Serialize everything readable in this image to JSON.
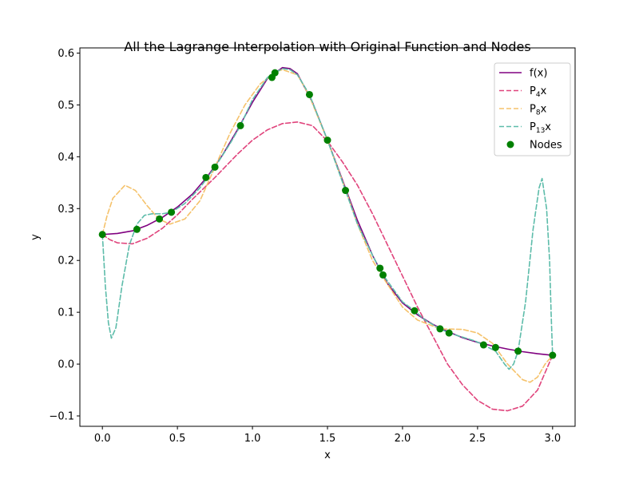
{
  "chart_data": {
    "type": "line",
    "title": "All the Lagrange Interpolation with Original Function and Nodes",
    "xlabel": "x",
    "ylabel": "y",
    "xlim": [
      -0.15,
      3.15
    ],
    "ylim": [
      -0.12,
      0.61
    ],
    "x_ticks": [
      0.0,
      0.5,
      1.0,
      1.5,
      2.0,
      2.5,
      3.0
    ],
    "x_tick_labels": [
      "0.0",
      "0.5",
      "1.0",
      "1.5",
      "2.0",
      "2.5",
      "3.0"
    ],
    "y_ticks": [
      -0.1,
      0.0,
      0.1,
      0.2,
      0.3,
      0.4,
      0.5,
      0.6
    ],
    "y_tick_labels": [
      "−0.1",
      "0.0",
      "0.1",
      "0.2",
      "0.3",
      "0.4",
      "0.5",
      "0.6"
    ],
    "grid": false,
    "legend_position": "top-right",
    "series": [
      {
        "name": "f(x)",
        "label_base": "f(x)",
        "label_sub": "",
        "label_tail": "",
        "color": "#800080",
        "style": "solid",
        "points": [
          [
            0.0,
            0.25
          ],
          [
            0.1,
            0.252
          ],
          [
            0.2,
            0.257
          ],
          [
            0.3,
            0.268
          ],
          [
            0.4,
            0.283
          ],
          [
            0.5,
            0.303
          ],
          [
            0.6,
            0.328
          ],
          [
            0.7,
            0.362
          ],
          [
            0.8,
            0.403
          ],
          [
            0.9,
            0.452
          ],
          [
            1.0,
            0.505
          ],
          [
            1.1,
            0.551
          ],
          [
            1.2,
            0.572
          ],
          [
            1.25,
            0.57
          ],
          [
            1.3,
            0.56
          ],
          [
            1.4,
            0.505
          ],
          [
            1.5,
            0.432
          ],
          [
            1.6,
            0.355
          ],
          [
            1.7,
            0.277
          ],
          [
            1.8,
            0.21
          ],
          [
            1.9,
            0.155
          ],
          [
            2.0,
            0.118
          ],
          [
            2.1,
            0.095
          ],
          [
            2.2,
            0.077
          ],
          [
            2.3,
            0.063
          ],
          [
            2.4,
            0.051
          ],
          [
            2.5,
            0.042
          ],
          [
            2.6,
            0.035
          ],
          [
            2.7,
            0.029
          ],
          [
            2.8,
            0.024
          ],
          [
            2.9,
            0.02
          ],
          [
            3.0,
            0.017
          ]
        ]
      },
      {
        "name": "P4x",
        "label_base": "P",
        "label_sub": "4",
        "label_tail": "x",
        "color": "#e0447c",
        "style": "dashed",
        "points": [
          [
            0.0,
            0.25
          ],
          [
            0.05,
            0.24
          ],
          [
            0.1,
            0.234
          ],
          [
            0.2,
            0.232
          ],
          [
            0.3,
            0.243
          ],
          [
            0.4,
            0.262
          ],
          [
            0.5,
            0.288
          ],
          [
            0.6,
            0.318
          ],
          [
            0.75,
            0.36
          ],
          [
            0.9,
            0.405
          ],
          [
            1.0,
            0.432
          ],
          [
            1.1,
            0.452
          ],
          [
            1.2,
            0.464
          ],
          [
            1.3,
            0.467
          ],
          [
            1.4,
            0.46
          ],
          [
            1.5,
            0.43
          ],
          [
            1.6,
            0.39
          ],
          [
            1.7,
            0.345
          ],
          [
            1.8,
            0.29
          ],
          [
            1.9,
            0.23
          ],
          [
            2.0,
            0.17
          ],
          [
            2.1,
            0.11
          ],
          [
            2.2,
            0.055
          ],
          [
            2.3,
            0.0
          ],
          [
            2.4,
            -0.04
          ],
          [
            2.5,
            -0.07
          ],
          [
            2.6,
            -0.087
          ],
          [
            2.7,
            -0.09
          ],
          [
            2.8,
            -0.081
          ],
          [
            2.9,
            -0.05
          ],
          [
            3.0,
            0.017
          ]
        ]
      },
      {
        "name": "P8x",
        "label_base": "P",
        "label_sub": "8",
        "label_tail": "x",
        "color": "#f5c26b",
        "style": "dashed",
        "points": [
          [
            0.0,
            0.25
          ],
          [
            0.03,
            0.285
          ],
          [
            0.07,
            0.32
          ],
          [
            0.15,
            0.345
          ],
          [
            0.22,
            0.335
          ],
          [
            0.3,
            0.305
          ],
          [
            0.375,
            0.28
          ],
          [
            0.45,
            0.27
          ],
          [
            0.55,
            0.28
          ],
          [
            0.65,
            0.315
          ],
          [
            0.75,
            0.38
          ],
          [
            0.85,
            0.445
          ],
          [
            0.95,
            0.5
          ],
          [
            1.05,
            0.54
          ],
          [
            1.15,
            0.563
          ],
          [
            1.2,
            0.568
          ],
          [
            1.3,
            0.558
          ],
          [
            1.375,
            0.52
          ],
          [
            1.5,
            0.432
          ],
          [
            1.625,
            0.333
          ],
          [
            1.7,
            0.27
          ],
          [
            1.8,
            0.2
          ],
          [
            1.875,
            0.165
          ],
          [
            2.0,
            0.11
          ],
          [
            2.1,
            0.085
          ],
          [
            2.25,
            0.068
          ],
          [
            2.4,
            0.067
          ],
          [
            2.5,
            0.06
          ],
          [
            2.6,
            0.04
          ],
          [
            2.7,
            0.0
          ],
          [
            2.8,
            -0.03
          ],
          [
            2.85,
            -0.035
          ],
          [
            2.9,
            -0.025
          ],
          [
            2.95,
            0.0
          ],
          [
            3.0,
            0.017
          ]
        ]
      },
      {
        "name": "P13x",
        "label_base": "P",
        "label_sub": "13",
        "label_tail": "x",
        "color": "#5dbcaa",
        "style": "dashed",
        "points": [
          [
            0.0,
            0.25
          ],
          [
            0.02,
            0.15
          ],
          [
            0.04,
            0.08
          ],
          [
            0.06,
            0.05
          ],
          [
            0.09,
            0.07
          ],
          [
            0.13,
            0.15
          ],
          [
            0.18,
            0.23
          ],
          [
            0.23,
            0.27
          ],
          [
            0.28,
            0.287
          ],
          [
            0.33,
            0.29
          ],
          [
            0.4,
            0.29
          ],
          [
            0.46,
            0.293
          ],
          [
            0.55,
            0.31
          ],
          [
            0.65,
            0.34
          ],
          [
            0.75,
            0.38
          ],
          [
            0.85,
            0.425
          ],
          [
            0.92,
            0.46
          ],
          [
            1.0,
            0.51
          ],
          [
            1.1,
            0.553
          ],
          [
            1.15,
            0.562
          ],
          [
            1.2,
            0.57
          ],
          [
            1.25,
            0.568
          ],
          [
            1.3,
            0.558
          ],
          [
            1.38,
            0.52
          ],
          [
            1.5,
            0.432
          ],
          [
            1.62,
            0.335
          ],
          [
            1.7,
            0.27
          ],
          [
            1.8,
            0.21
          ],
          [
            1.87,
            0.172
          ],
          [
            2.0,
            0.12
          ],
          [
            2.08,
            0.103
          ],
          [
            2.15,
            0.085
          ],
          [
            2.25,
            0.068
          ],
          [
            2.31,
            0.06
          ],
          [
            2.4,
            0.052
          ],
          [
            2.48,
            0.045
          ],
          [
            2.54,
            0.037
          ],
          [
            2.62,
            0.025
          ],
          [
            2.68,
            0.0
          ],
          [
            2.71,
            -0.01
          ],
          [
            2.74,
            0.0
          ],
          [
            2.77,
            0.025
          ],
          [
            2.82,
            0.12
          ],
          [
            2.87,
            0.26
          ],
          [
            2.91,
            0.34
          ],
          [
            2.93,
            0.358
          ],
          [
            2.96,
            0.3
          ],
          [
            2.98,
            0.2
          ],
          [
            2.99,
            0.1
          ],
          [
            3.0,
            0.017
          ]
        ]
      }
    ],
    "nodes": {
      "name": "Nodes",
      "color": "#008000",
      "points": [
        [
          0.0,
          0.25
        ],
        [
          0.23,
          0.26
        ],
        [
          0.38,
          0.28
        ],
        [
          0.46,
          0.293
        ],
        [
          0.69,
          0.36
        ],
        [
          0.75,
          0.38
        ],
        [
          0.92,
          0.46
        ],
        [
          1.13,
          0.553
        ],
        [
          1.15,
          0.562
        ],
        [
          1.38,
          0.52
        ],
        [
          1.5,
          0.432
        ],
        [
          1.62,
          0.335
        ],
        [
          1.85,
          0.185
        ],
        [
          1.87,
          0.172
        ],
        [
          2.08,
          0.103
        ],
        [
          2.25,
          0.068
        ],
        [
          2.31,
          0.06
        ],
        [
          2.54,
          0.037
        ],
        [
          2.62,
          0.032
        ],
        [
          2.77,
          0.025
        ],
        [
          3.0,
          0.017
        ]
      ]
    }
  }
}
